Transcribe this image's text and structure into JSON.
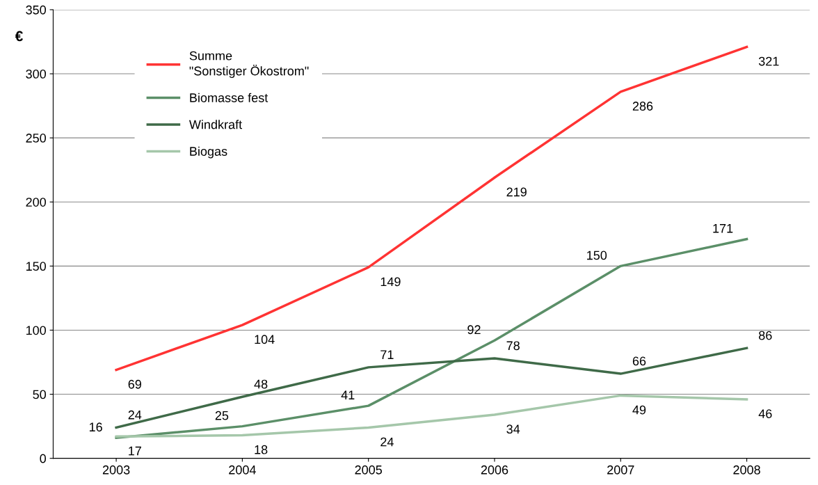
{
  "chart_data": {
    "type": "line",
    "ylabel": "€",
    "categories": [
      "2003",
      "2004",
      "2005",
      "2006",
      "2007",
      "2008"
    ],
    "series": [
      {
        "name": "Summe\n\"Sonstiger Ökostrom\"",
        "color": "#ff3333",
        "values": [
          69,
          104,
          149,
          219,
          286,
          321
        ]
      },
      {
        "name": "Biomasse fest",
        "color": "#5b8f68",
        "values": [
          16,
          25,
          41,
          92,
          150,
          171
        ]
      },
      {
        "name": "Windkraft",
        "color": "#3f6a48",
        "values": [
          24,
          48,
          71,
          78,
          66,
          86
        ]
      },
      {
        "name": "Biogas",
        "color": "#a5c7aa",
        "values": [
          17,
          18,
          24,
          34,
          49,
          46
        ]
      }
    ],
    "ylim": [
      0,
      350
    ],
    "yticks": [
      0,
      50,
      100,
      150,
      200,
      250,
      300,
      350
    ],
    "grid": "y",
    "legend": "top left",
    "data_labels": true,
    "marker": "none",
    "line_style": "solid"
  }
}
